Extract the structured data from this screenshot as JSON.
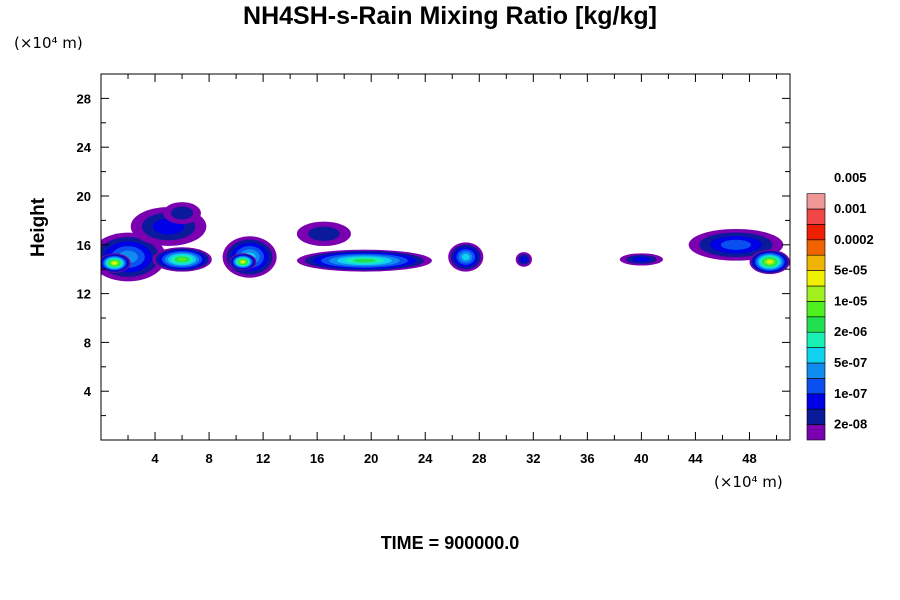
{
  "title": "NH4SH-s-Rain Mixing Ratio [kg/kg]",
  "ylabel": "Height",
  "y_unit_label": "(×10⁴ m)",
  "x_unit_label": "(×10⁴ m)",
  "time_label": "TIME =",
  "time_value": "900000.0",
  "chart_data": {
    "type": "heatmap",
    "title": "NH4SH-s-Rain Mixing Ratio [kg/kg]",
    "xlabel": "",
    "ylabel": "Height",
    "xlim": [
      0,
      51
    ],
    "ylim": [
      0,
      30
    ],
    "x_ticks": [
      4,
      8,
      12,
      16,
      20,
      24,
      28,
      32,
      36,
      40,
      44,
      48
    ],
    "y_ticks": [
      4,
      8,
      12,
      16,
      20,
      24,
      28
    ],
    "x_minor_step": 2,
    "y_minor_step": 2,
    "x_unit": "(×10⁴ m)",
    "y_unit": "(×10⁴ m)",
    "colorbar": {
      "placement": "right",
      "colors": [
        "#7a00b0",
        "#0a1a9a",
        "#0000e6",
        "#0a50f0",
        "#0f8cf0",
        "#10d2f0",
        "#18f0b4",
        "#20e050",
        "#50f020",
        "#a0f020",
        "#f0f000",
        "#f0b400",
        "#f06400",
        "#f01e00",
        "#f04646",
        "#f09696"
      ],
      "labels": [
        "2e-08",
        "1e-07",
        "5e-07",
        "2e-06",
        "1e-05",
        "5e-05",
        "0.0002",
        "0.001",
        "0.005"
      ]
    },
    "blobs": [
      {
        "x": 2.0,
        "y": 15.0,
        "rx": 2.8,
        "ry": 2.0,
        "level": 4
      },
      {
        "x": 1.0,
        "y": 14.5,
        "rx": 1.2,
        "ry": 0.8,
        "level": 10
      },
      {
        "x": 5.0,
        "y": 17.5,
        "rx": 2.8,
        "ry": 1.6,
        "level": 2
      },
      {
        "x": 6.0,
        "y": 18.6,
        "rx": 1.4,
        "ry": 0.9,
        "level": 1
      },
      {
        "x": 6.0,
        "y": 14.8,
        "rx": 2.2,
        "ry": 1.0,
        "level": 8
      },
      {
        "x": 11.0,
        "y": 15.0,
        "rx": 2.0,
        "ry": 1.7,
        "level": 5
      },
      {
        "x": 10.5,
        "y": 14.6,
        "rx": 1.0,
        "ry": 0.7,
        "level": 10
      },
      {
        "x": 16.5,
        "y": 16.9,
        "rx": 2.0,
        "ry": 1.0,
        "level": 1
      },
      {
        "x": 19.5,
        "y": 14.7,
        "rx": 5.0,
        "ry": 0.9,
        "level": 7
      },
      {
        "x": 27.0,
        "y": 15.0,
        "rx": 1.3,
        "ry": 1.2,
        "level": 5
      },
      {
        "x": 31.3,
        "y": 14.8,
        "rx": 0.6,
        "ry": 0.6,
        "level": 2
      },
      {
        "x": 40.0,
        "y": 14.8,
        "rx": 1.6,
        "ry": 0.5,
        "level": 2
      },
      {
        "x": 47.0,
        "y": 16.0,
        "rx": 3.5,
        "ry": 1.3,
        "level": 3
      },
      {
        "x": 49.5,
        "y": 14.6,
        "rx": 1.5,
        "ry": 1.0,
        "level": 10
      }
    ]
  }
}
